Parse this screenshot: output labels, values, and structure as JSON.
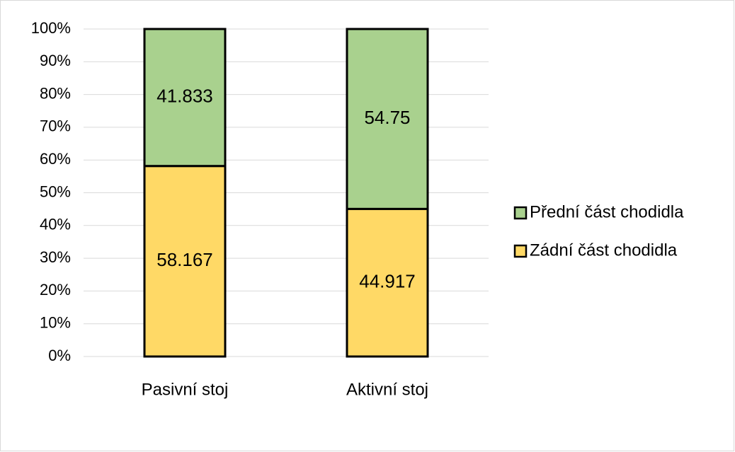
{
  "chart_data": {
    "type": "bar",
    "stacking": "percent",
    "categories": [
      "Pasivní stoj",
      "Aktivní stoj"
    ],
    "series": [
      {
        "name": "Zádní část chodidla",
        "color": "#ffd966",
        "values": [
          58.167,
          44.917
        ]
      },
      {
        "name": "Přední část chodidla",
        "color": "#a9d18e",
        "values": [
          41.833,
          54.75
        ]
      }
    ],
    "ylim": [
      0,
      100
    ],
    "yticks": [
      {
        "value": 0,
        "label": "0%"
      },
      {
        "value": 10,
        "label": "10%"
      },
      {
        "value": 20,
        "label": "20%"
      },
      {
        "value": 30,
        "label": "30%"
      },
      {
        "value": 40,
        "label": "40%"
      },
      {
        "value": 50,
        "label": "50%"
      },
      {
        "value": 60,
        "label": "60%"
      },
      {
        "value": 70,
        "label": "70%"
      },
      {
        "value": 80,
        "label": "80%"
      },
      {
        "value": 90,
        "label": "90%"
      },
      {
        "value": 100,
        "label": "100%"
      }
    ],
    "grid": true,
    "legend": "right"
  }
}
